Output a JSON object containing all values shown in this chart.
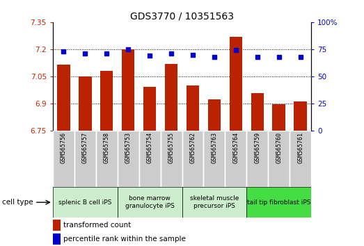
{
  "title": "GDS3770 / 10351563",
  "samples": [
    "GSM565756",
    "GSM565757",
    "GSM565758",
    "GSM565753",
    "GSM565754",
    "GSM565755",
    "GSM565762",
    "GSM565763",
    "GSM565764",
    "GSM565759",
    "GSM565760",
    "GSM565761"
  ],
  "bar_values": [
    7.115,
    7.05,
    7.08,
    7.2,
    6.99,
    7.12,
    7.0,
    6.92,
    7.27,
    6.955,
    6.895,
    6.91
  ],
  "percentile_values": [
    73,
    71,
    71,
    75,
    69,
    71,
    70,
    68,
    74,
    68,
    68,
    68
  ],
  "ylim_left": [
    6.75,
    7.35
  ],
  "ylim_right": [
    0,
    100
  ],
  "yticks_left": [
    6.75,
    6.9,
    7.05,
    7.2,
    7.35
  ],
  "yticks_right": [
    0,
    25,
    50,
    75,
    100
  ],
  "ytick_labels_left": [
    "6.75",
    "6.9",
    "7.05",
    "7.2",
    "7.35"
  ],
  "ytick_labels_right": [
    "0",
    "25",
    "50",
    "75",
    "100%"
  ],
  "bar_color": "#bb2200",
  "dot_color": "#0000cc",
  "cell_type_groups": [
    {
      "label": "splenic B cell iPS",
      "start": 0,
      "end": 3,
      "color": "#cceecc"
    },
    {
      "label": "bone marrow\ngranulocyte iPS",
      "start": 3,
      "end": 6,
      "color": "#cceecc"
    },
    {
      "label": "skeletal muscle\nprecursor iPS",
      "start": 6,
      "end": 9,
      "color": "#cceecc"
    },
    {
      "label": "tail tip fibroblast iPS",
      "start": 9,
      "end": 12,
      "color": "#44dd44"
    }
  ],
  "sample_bg_color": "#cccccc",
  "legend_bar_color": "#bb2200",
  "legend_dot_color": "#0000cc",
  "legend_bar_label": "transformed count",
  "legend_dot_label": "percentile rank within the sample",
  "background_color": "#ffffff",
  "grid_color": "#000000",
  "cell_type_label": "cell type",
  "hgrid_values": [
    6.9,
    7.05,
    7.2
  ],
  "bar_width": 0.6
}
